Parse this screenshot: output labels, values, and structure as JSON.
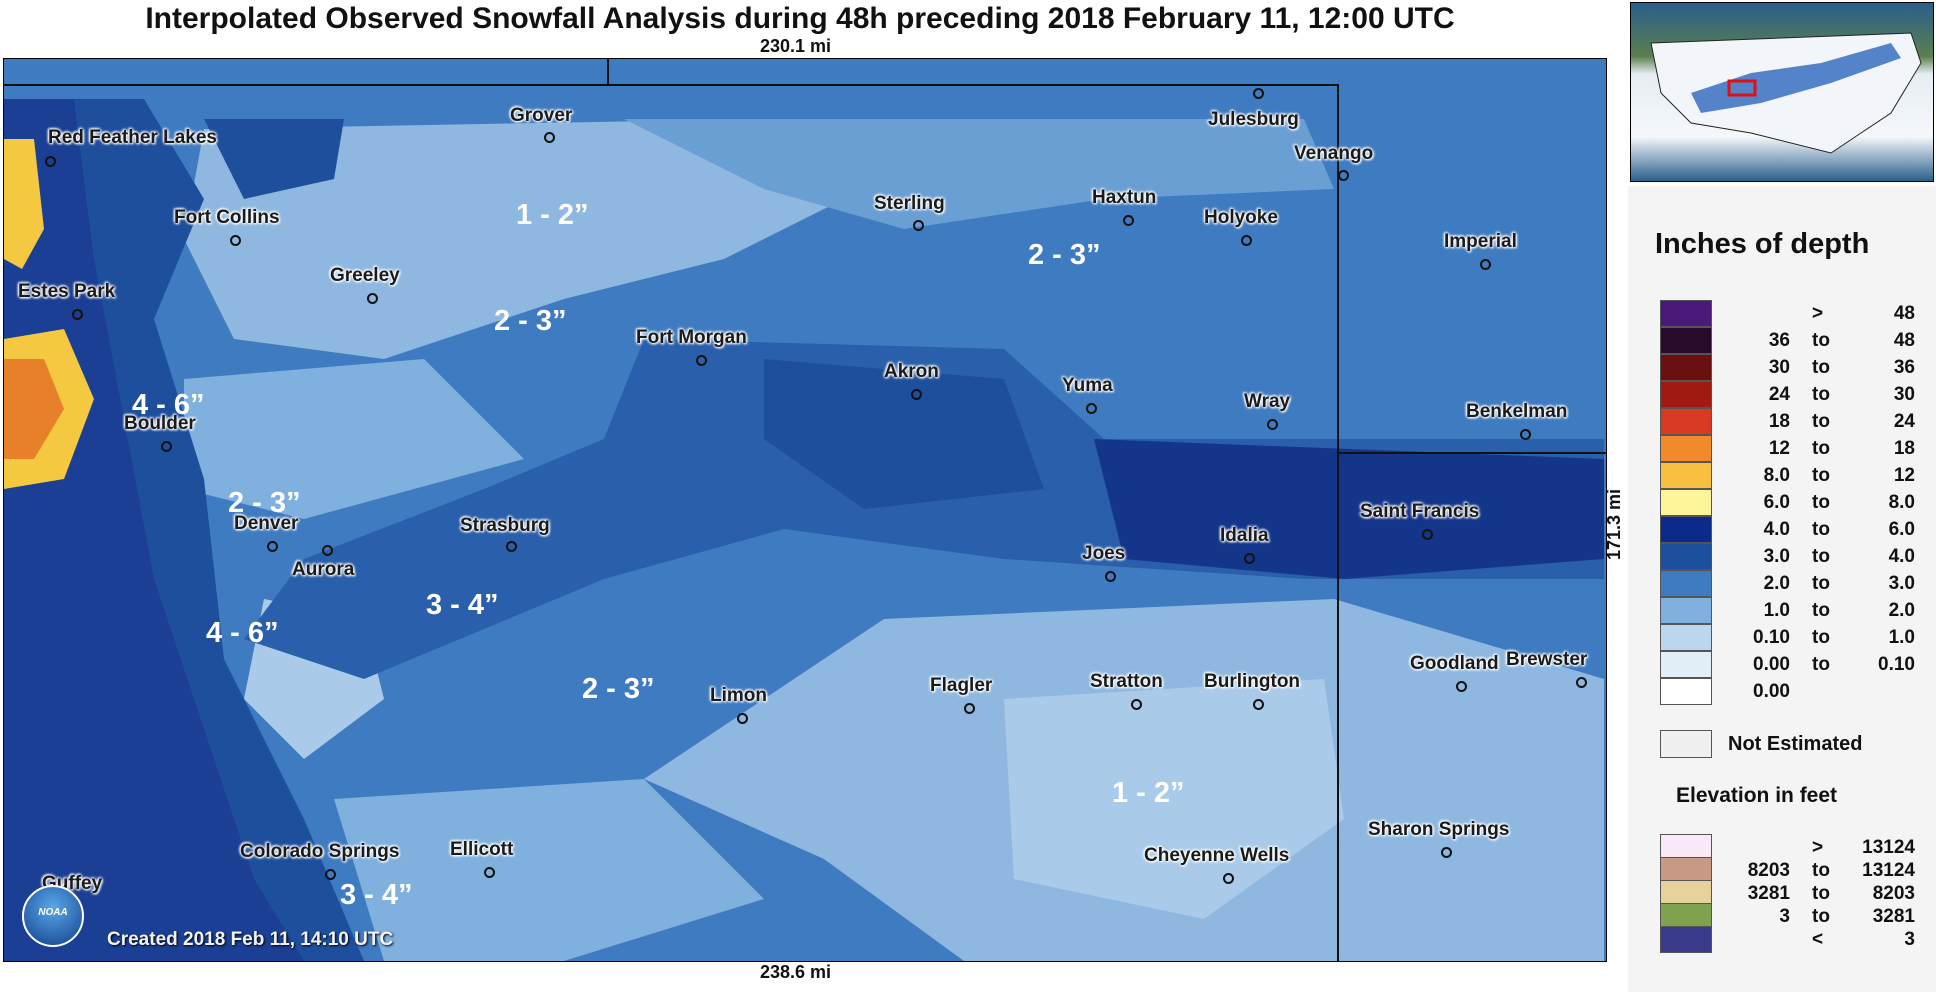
{
  "title": "Interpolated Observed Snowfall Analysis during 48h preceding 2018 February 11, 12:00 UTC",
  "distances": {
    "top": "230.1 mi",
    "bottom": "238.6 mi",
    "side": "171.3 mi"
  },
  "created": "Created 2018 Feb 11, 14:10 UTC",
  "logo_text": "NOAA",
  "colors": {
    "map_base": "#3f7bc0",
    "light_band": "#8fb8e0",
    "dark_band": "#1e4f9c",
    "very_dark": "#14368a",
    "pale": "#c9ddf0",
    "mountain_yellow": "#f5c842",
    "mountain_orange": "#e8802a"
  },
  "cities": [
    {
      "name": "Red Feather Lakes"
    },
    {
      "name": "Grover"
    },
    {
      "name": "Julesburg"
    },
    {
      "name": "Venango"
    },
    {
      "name": "Fort Collins"
    },
    {
      "name": "Sterling"
    },
    {
      "name": "Haxtun"
    },
    {
      "name": "Holyoke"
    },
    {
      "name": "Imperial"
    },
    {
      "name": "Greeley"
    },
    {
      "name": "Estes Park"
    },
    {
      "name": "Fort Morgan"
    },
    {
      "name": "Akron"
    },
    {
      "name": "Yuma"
    },
    {
      "name": "Wray"
    },
    {
      "name": "Benkelman"
    },
    {
      "name": "Boulder"
    },
    {
      "name": "Saint Francis"
    },
    {
      "name": "Denver"
    },
    {
      "name": "Aurora"
    },
    {
      "name": "Strasburg"
    },
    {
      "name": "Joes"
    },
    {
      "name": "Idalia"
    },
    {
      "name": "Limon"
    },
    {
      "name": "Flagler"
    },
    {
      "name": "Stratton"
    },
    {
      "name": "Burlington"
    },
    {
      "name": "Goodland"
    },
    {
      "name": "Brewster"
    },
    {
      "name": "Sharon Springs"
    },
    {
      "name": "Colorado Springs"
    },
    {
      "name": "Ellicott"
    },
    {
      "name": "Cheyenne Wells"
    },
    {
      "name": "Guffey"
    }
  ],
  "amounts": [
    "1 - 2”",
    "2 - 3”",
    "2 - 3”",
    "4 - 6”",
    "2 - 3”",
    "3 - 4”",
    "4 - 6”",
    "2 - 3”",
    "1 - 2”",
    "3 - 4”"
  ],
  "legend": {
    "title": "Inches of depth",
    "rows": [
      {
        "lo": "",
        "mid": ">",
        "hi": "48",
        "color": "#4a1a7a"
      },
      {
        "lo": "36",
        "mid": "to",
        "hi": "48",
        "color": "#2a0a2a"
      },
      {
        "lo": "30",
        "mid": "to",
        "hi": "36",
        "color": "#6a1010"
      },
      {
        "lo": "24",
        "mid": "to",
        "hi": "30",
        "color": "#a01a12"
      },
      {
        "lo": "18",
        "mid": "to",
        "hi": "24",
        "color": "#d83a22"
      },
      {
        "lo": "12",
        "mid": "to",
        "hi": "18",
        "color": "#f08a2a"
      },
      {
        "lo": "8.0",
        "mid": "to",
        "hi": "12",
        "color": "#f8c040"
      },
      {
        "lo": "6.0",
        "mid": "to",
        "hi": "8.0",
        "color": "#fef59a"
      },
      {
        "lo": "4.0",
        "mid": "to",
        "hi": "6.0",
        "color": "#0c2a8a"
      },
      {
        "lo": "3.0",
        "mid": "to",
        "hi": "4.0",
        "color": "#1e4f9c"
      },
      {
        "lo": "2.0",
        "mid": "to",
        "hi": "3.0",
        "color": "#3f7bc0"
      },
      {
        "lo": "1.0",
        "mid": "to",
        "hi": "2.0",
        "color": "#7fb0de"
      },
      {
        "lo": "0.10",
        "mid": "to",
        "hi": "1.0",
        "color": "#bcd6ee"
      },
      {
        "lo": "0.00",
        "mid": "to",
        "hi": "0.10",
        "color": "#e2eef8"
      },
      {
        "lo": "0.00",
        "mid": "",
        "hi": "",
        "color": "#ffffff"
      }
    ],
    "not_estimated": "Not Estimated",
    "elevation_title": "Elevation in feet",
    "elevation_rows": [
      {
        "lo": "",
        "mid": ">",
        "hi": "13124",
        "color": "#f8e8f8"
      },
      {
        "lo": "8203",
        "mid": "to",
        "hi": "13124",
        "color": "#c89a86"
      },
      {
        "lo": "3281",
        "mid": "to",
        "hi": "8203",
        "color": "#e6d29a"
      },
      {
        "lo": "3",
        "mid": "to",
        "hi": "3281",
        "color": "#7ea24e"
      },
      {
        "lo": "",
        "mid": "<",
        "hi": "3",
        "color": "#3a3a8a"
      }
    ]
  }
}
